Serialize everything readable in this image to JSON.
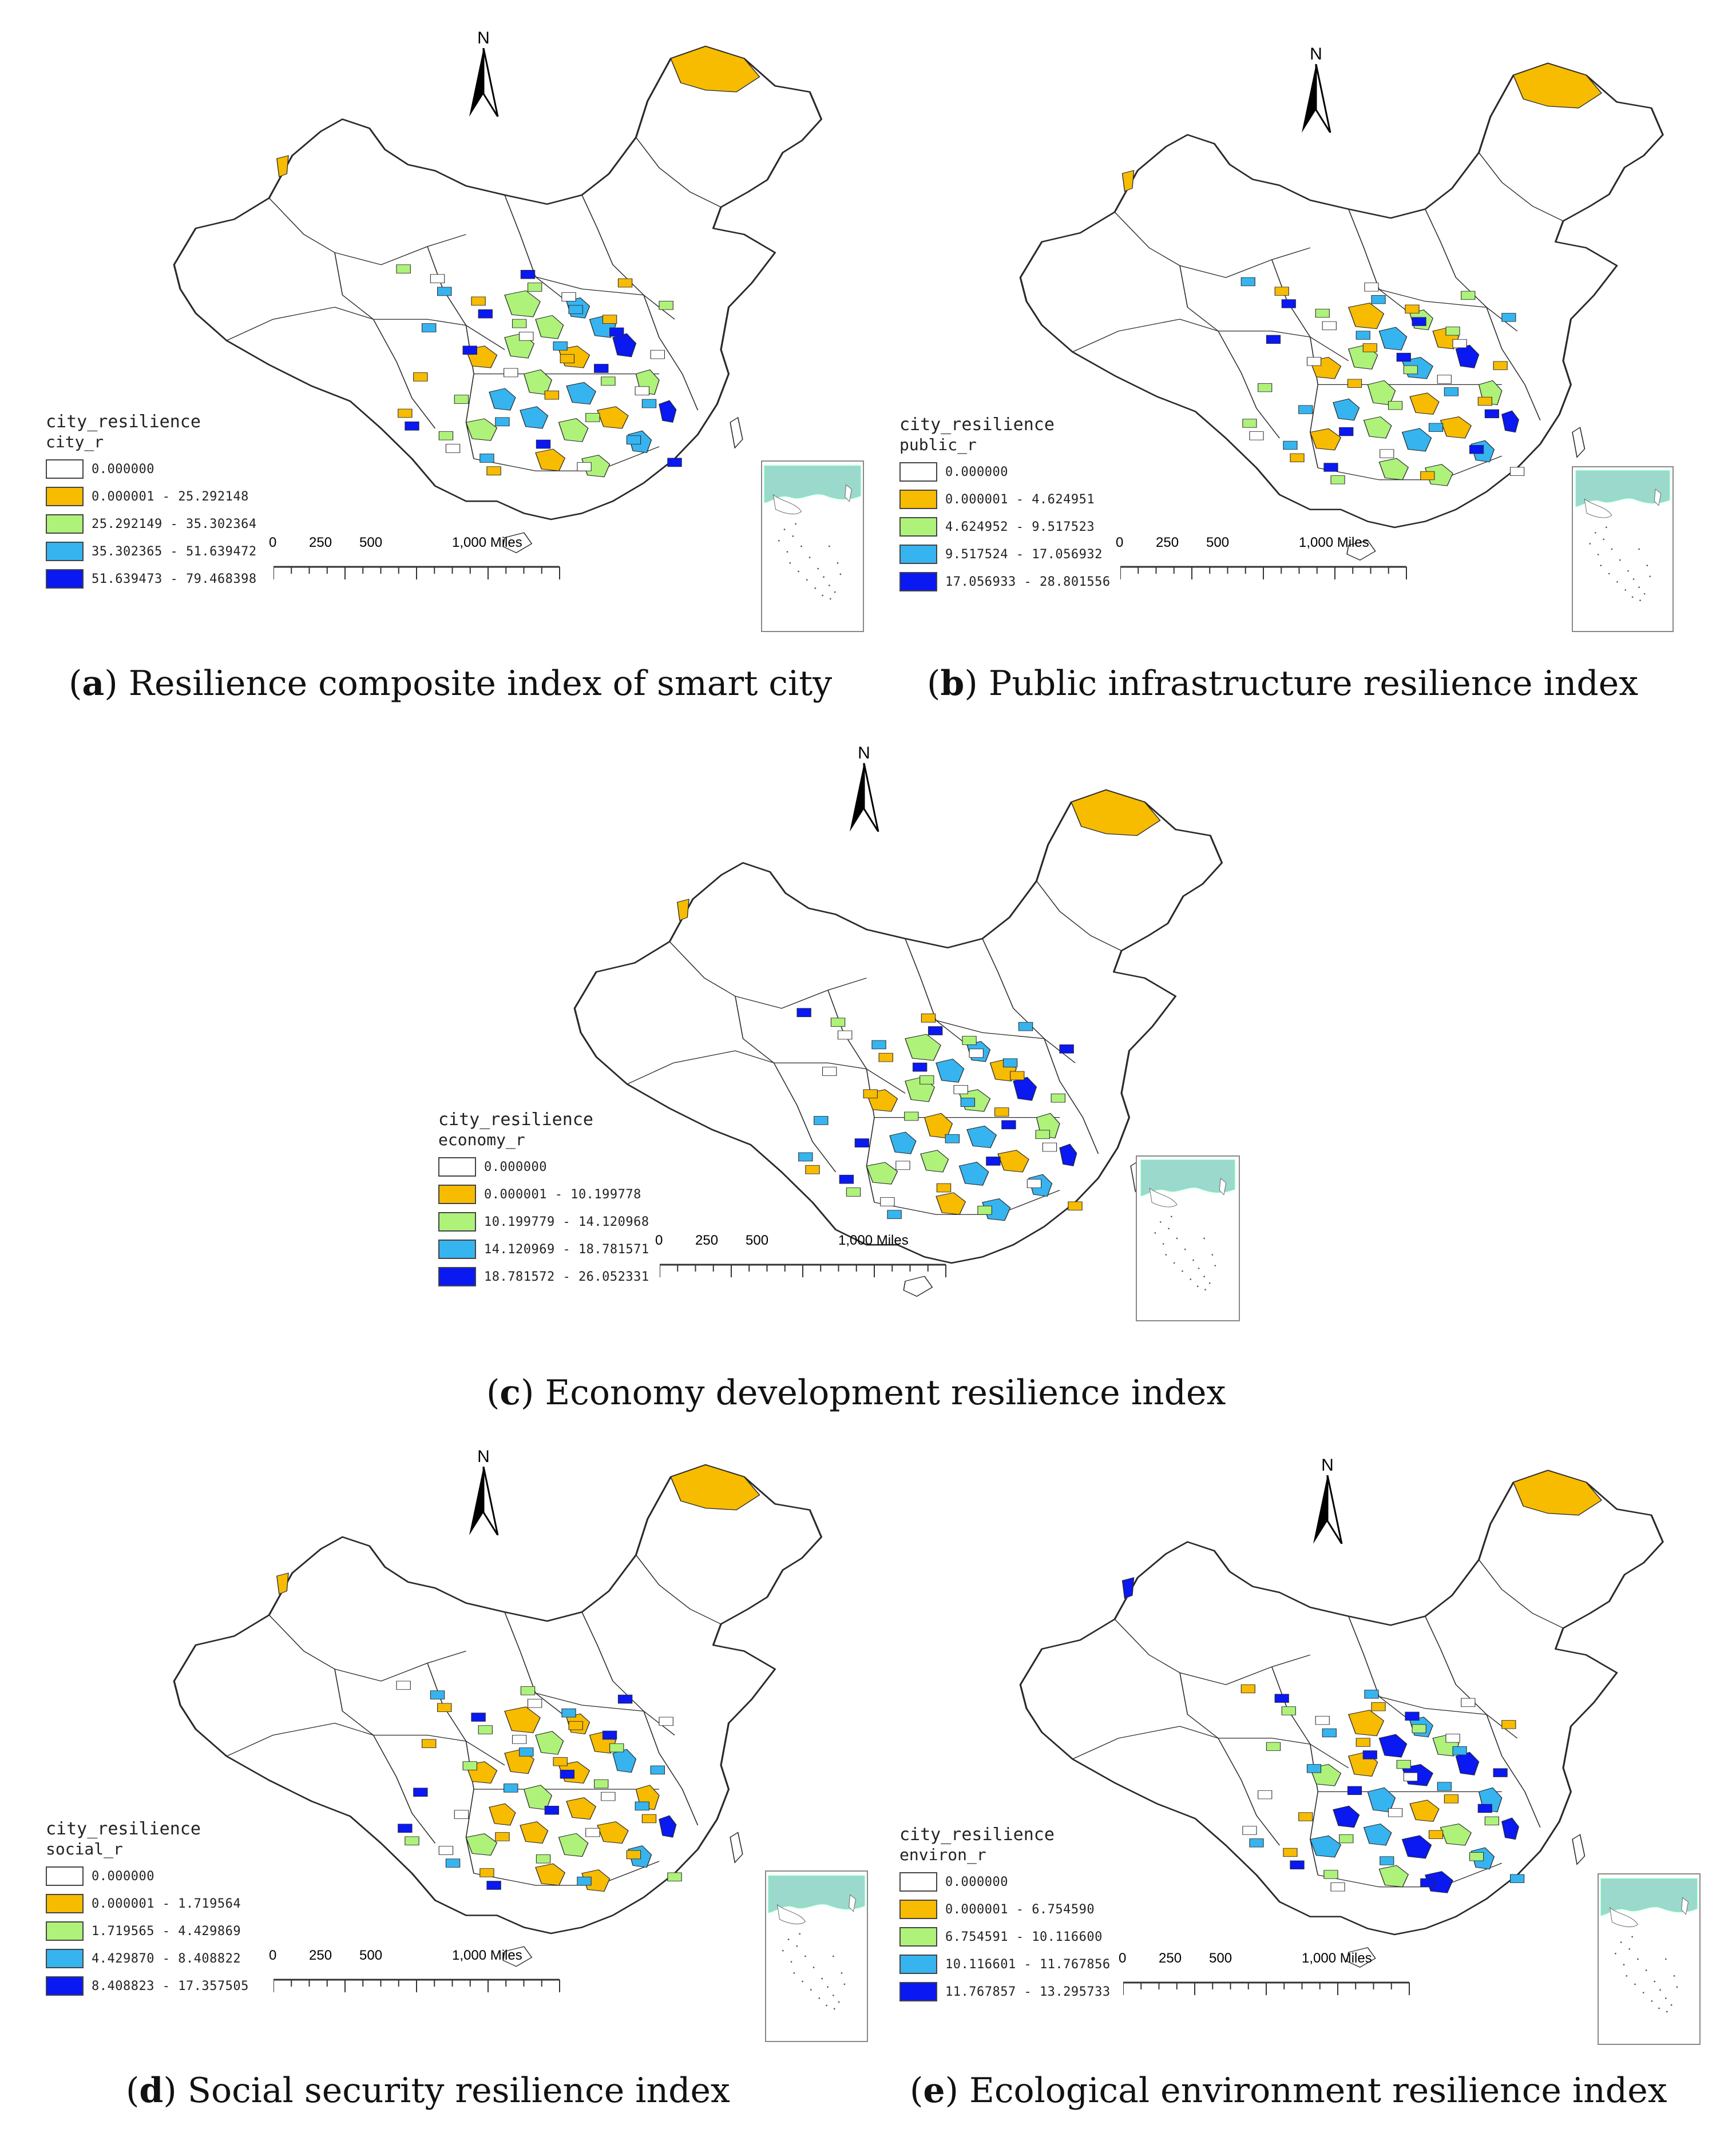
{
  "colors": {
    "class0": "#ffffff",
    "class1": "#f7bb00",
    "class2": "#aef27a",
    "class3": "#36b4f0",
    "class4": "#0a18f2",
    "outline": "#2a2a2a",
    "inset_sea": "#9ad9cc"
  },
  "north_label": "N",
  "scale": {
    "t0": "0",
    "t1": "250",
    "t2": "500",
    "t3": "1,000 Miles"
  },
  "panels": {
    "a": {
      "legend_title": "city_resilience",
      "field": "city_r",
      "classes": [
        "0.000000",
        "0.000001 - 25.292148",
        "25.292149 - 35.302364",
        "35.302365 - 51.639472",
        "51.639473 - 79.468398"
      ],
      "caption_letter": "a",
      "caption_text": "Resilience composite index of smart city"
    },
    "b": {
      "legend_title": "city_resilience",
      "field": "public_r",
      "classes": [
        "0.000000",
        "0.000001 - 4.624951",
        "4.624952 - 9.517523",
        "9.517524 - 17.056932",
        "17.056933 - 28.801556"
      ],
      "caption_letter": "b",
      "caption_text": "Public infrastructure resilience index"
    },
    "c": {
      "legend_title": "city_resilience",
      "field": "economy_r",
      "classes": [
        "0.000000",
        "0.000001 - 10.199778",
        "10.199779 - 14.120968",
        "14.120969 - 18.781571",
        "18.781572 - 26.052331"
      ],
      "caption_letter": "c",
      "caption_text": "Economy development resilience index"
    },
    "d": {
      "legend_title": "city_resilience",
      "field": "social_r",
      "classes": [
        "0.000000",
        "0.000001 - 1.719564",
        "1.719565 - 4.429869",
        "4.429870 - 8.408822",
        "8.408823 - 17.357505"
      ],
      "caption_letter": "d",
      "caption_text": "Social security resilience index"
    },
    "e": {
      "legend_title": "city_resilience",
      "field": "environ_r",
      "classes": [
        "0.000000",
        "0.000001 - 6.754590",
        "6.754591 - 10.116600",
        "10.116601 - 11.767856",
        "11.767857 - 13.295733"
      ],
      "caption_letter": "e",
      "caption_text": "Ecological environment resilience index"
    }
  }
}
